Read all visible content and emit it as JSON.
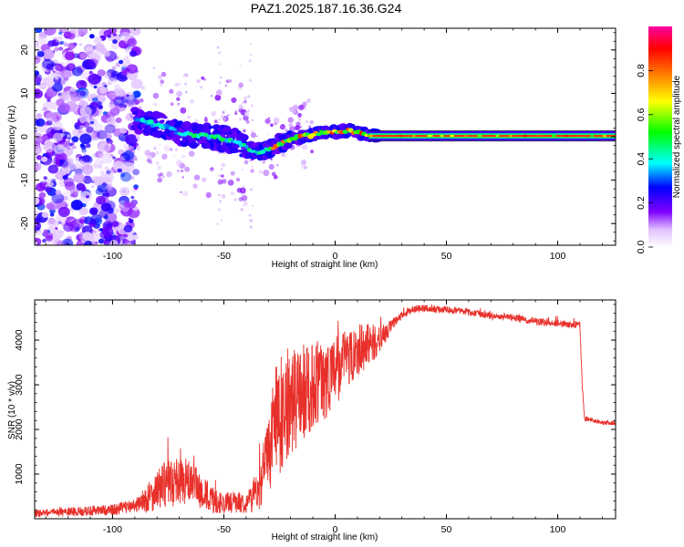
{
  "page": {
    "title": "PAZ1.2025.187.16.36.G24"
  },
  "chart_data": [
    {
      "type": "heatmap",
      "title": "PAZ1.2025.187.16.36.G24",
      "xlabel": "Height of straight line (km)",
      "ylabel": "Frequency (Hz)",
      "xlim": [
        -135,
        126
      ],
      "ylim": [
        -25,
        25
      ],
      "xticks": [
        -100,
        -50,
        0,
        50,
        100
      ],
      "yticks": [
        -20,
        -10,
        0,
        10,
        20
      ],
      "grid": false,
      "colorbar": {
        "label": "Normalized spectral amplitude",
        "range": [
          0,
          1
        ],
        "ticks": [
          "0.0",
          "0.2",
          "0.4",
          "0.6",
          "0.8"
        ],
        "colors": [
          "#ffffff",
          "#7a00ff",
          "#0000ff",
          "#00ffff",
          "#00ff00",
          "#ffff00",
          "#ff8000",
          "#ff0000",
          "#ff00b0"
        ]
      },
      "ridge": {
        "x": [
          -90,
          -85,
          -80,
          -75,
          -70,
          -65,
          -60,
          -55,
          -50,
          -45,
          -40,
          -35,
          -30,
          -25,
          -20,
          -15,
          -10,
          -5,
          0,
          5,
          10,
          15,
          20,
          40,
          60,
          80,
          100,
          120,
          126
        ],
        "y": [
          4,
          3.5,
          2.5,
          2,
          1,
          0.5,
          0.5,
          0,
          -0.5,
          -1,
          -2.5,
          -3.5,
          -3,
          -1.5,
          -0.5,
          0,
          0.5,
          1,
          1,
          1.5,
          1,
          0.2,
          0.2,
          0.2,
          0.2,
          0.2,
          0.2,
          0.2,
          0.2
        ]
      }
    },
    {
      "type": "line",
      "xlabel": "Height of straight line (km)",
      "ylabel": "SNR (10 * v/v)",
      "xlim": [
        -135,
        126
      ],
      "ylim": [
        0,
        4900
      ],
      "xticks": [
        -100,
        -50,
        0,
        50,
        100
      ],
      "yticks": [
        1000,
        2000,
        3000,
        4000
      ],
      "grid": false,
      "line_color": "#e8302a",
      "envelope": {
        "x": [
          -135,
          -120,
          -100,
          -90,
          -85,
          -80,
          -75,
          -70,
          -65,
          -60,
          -55,
          -50,
          -45,
          -40,
          -35,
          -30,
          -28,
          -25,
          -20,
          -15,
          -10,
          -5,
          0,
          5,
          10,
          15,
          20,
          25,
          30,
          35,
          40,
          50,
          60,
          70,
          80,
          90,
          100,
          105,
          110,
          111,
          112,
          115,
          120,
          126
        ],
        "y": [
          120,
          150,
          200,
          300,
          420,
          650,
          800,
          850,
          820,
          600,
          400,
          350,
          380,
          350,
          600,
          1400,
          2000,
          2300,
          2600,
          2800,
          3000,
          3100,
          3300,
          3600,
          3800,
          3900,
          4000,
          4300,
          4550,
          4700,
          4700,
          4680,
          4620,
          4550,
          4500,
          4420,
          4380,
          4350,
          4350,
          3000,
          2250,
          2200,
          2150,
          2150
        ],
        "noise": [
          80,
          100,
          120,
          150,
          300,
          450,
          550,
          550,
          500,
          400,
          300,
          220,
          250,
          220,
          450,
          900,
          1200,
          1300,
          1200,
          1100,
          1000,
          900,
          800,
          700,
          600,
          500,
          300,
          150,
          100,
          90,
          90,
          80,
          80,
          80,
          80,
          80,
          80,
          80,
          80,
          80,
          60,
          50,
          50,
          50
        ]
      }
    }
  ]
}
